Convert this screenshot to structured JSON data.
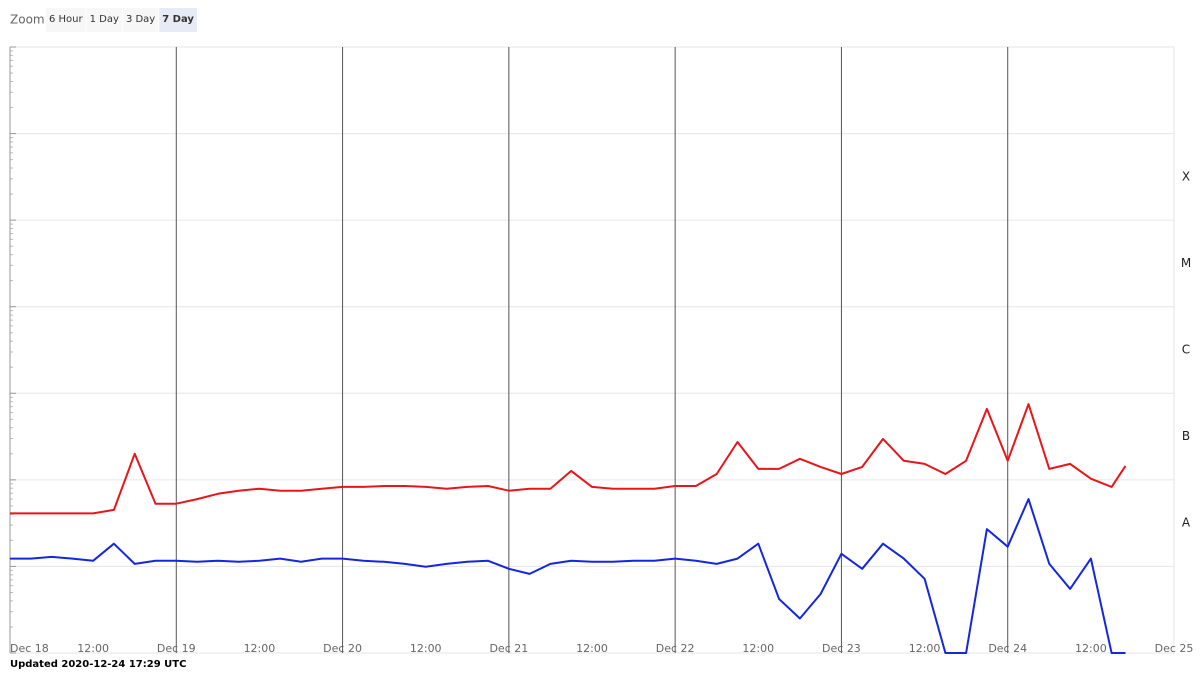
{
  "zoom": {
    "label": "Zoom",
    "buttons": [
      "6 Hour",
      "1 Day",
      "3 Day",
      "7 Day"
    ],
    "active": 3
  },
  "footer": "Updated 2020-12-24 17:29 UTC",
  "chart_data": {
    "type": "line",
    "log_y": true,
    "grid": true,
    "x": [
      "2020-12-18 00:00",
      "2020-12-18 03:00",
      "2020-12-18 06:00",
      "2020-12-18 09:00",
      "2020-12-18 12:00",
      "2020-12-18 15:00",
      "2020-12-18 18:00",
      "2020-12-18 21:00",
      "2020-12-19 00:00",
      "2020-12-19 03:00",
      "2020-12-19 06:00",
      "2020-12-19 09:00",
      "2020-12-19 12:00",
      "2020-12-19 15:00",
      "2020-12-19 18:00",
      "2020-12-19 21:00",
      "2020-12-20 00:00",
      "2020-12-20 03:00",
      "2020-12-20 06:00",
      "2020-12-20 09:00",
      "2020-12-20 12:00",
      "2020-12-20 15:00",
      "2020-12-20 18:00",
      "2020-12-20 21:00",
      "2020-12-21 00:00",
      "2020-12-21 03:00",
      "2020-12-21 06:00",
      "2020-12-21 09:00",
      "2020-12-21 12:00",
      "2020-12-21 15:00",
      "2020-12-21 18:00",
      "2020-12-21 21:00",
      "2020-12-22 00:00",
      "2020-12-22 03:00",
      "2020-12-22 06:00",
      "2020-12-22 09:00",
      "2020-12-22 12:00",
      "2020-12-22 15:00",
      "2020-12-22 18:00",
      "2020-12-22 21:00",
      "2020-12-23 00:00",
      "2020-12-23 03:00",
      "2020-12-23 06:00",
      "2020-12-23 09:00",
      "2020-12-23 12:00",
      "2020-12-23 15:00",
      "2020-12-23 18:00",
      "2020-12-23 21:00",
      "2020-12-24 00:00",
      "2020-12-24 03:00",
      "2020-12-24 06:00",
      "2020-12-24 09:00",
      "2020-12-24 12:00",
      "2020-12-24 15:00",
      "2020-12-24 17:00"
    ],
    "series": [
      {
        "color": "#e8151b",
        "values": [
          4.1e-08,
          4.1e-08,
          4.1e-08,
          4.1e-08,
          4.1e-08,
          4.5e-08,
          2e-07,
          5.3e-08,
          5.3e-08,
          6e-08,
          6.9e-08,
          7.5e-08,
          7.9e-08,
          7.5e-08,
          7.5e-08,
          7.9e-08,
          8.3e-08,
          8.3e-08,
          8.5e-08,
          8.5e-08,
          8.3e-08,
          7.9e-08,
          8.3e-08,
          8.5e-08,
          7.5e-08,
          7.9e-08,
          7.9e-08,
          1.27e-07,
          8.3e-08,
          7.9e-08,
          7.9e-08,
          7.9e-08,
          8.5e-08,
          8.5e-08,
          1.17e-07,
          2.74e-07,
          1.34e-07,
          1.34e-07,
          1.75e-07,
          1.41e-07,
          1.17e-07,
          1.41e-07,
          2.97e-07,
          1.66e-07,
          1.53e-07,
          1.17e-07,
          1.66e-07,
          6.6e-07,
          1.66e-07,
          7.5e-07,
          1.34e-07,
          1.53e-07,
          1.03e-07,
          8.3e-08,
          1.45e-07
        ]
      },
      {
        "color": "#1427e0",
        "values": [
          1.23e-08,
          1.23e-08,
          1.29e-08,
          1.23e-08,
          1.16e-08,
          1.83e-08,
          1.07e-08,
          1.16e-08,
          1.16e-08,
          1.13e-08,
          1.16e-08,
          1.13e-08,
          1.16e-08,
          1.23e-08,
          1.13e-08,
          1.23e-08,
          1.23e-08,
          1.16e-08,
          1.13e-08,
          1.07e-08,
          9.9e-09,
          1.07e-08,
          1.13e-08,
          1.16e-08,
          9.4e-09,
          8.2e-09,
          1.07e-08,
          1.16e-08,
          1.13e-08,
          1.13e-08,
          1.16e-08,
          1.16e-08,
          1.23e-08,
          1.16e-08,
          1.07e-08,
          1.23e-08,
          1.83e-08,
          4.2e-09,
          2.5e-09,
          4.8e-09,
          1.4e-08,
          9.4e-09,
          1.83e-08,
          1.23e-08,
          7.2e-09,
          1e-09,
          1e-09,
          2.7e-08,
          1.69e-08,
          6e-08,
          1.07e-08,
          5.5e-09,
          1.23e-08,
          1e-09,
          1e-09
        ]
      }
    ],
    "xlim": [
      "2020-12-18 00:00",
      "2020-12-25 00:00"
    ],
    "xticks": [
      {
        "value": "2020-12-18 00:00",
        "label": "Dec 18"
      },
      {
        "value": "2020-12-18 12:00",
        "label": "12:00"
      },
      {
        "value": "2020-12-19 00:00",
        "label": "Dec 19"
      },
      {
        "value": "2020-12-19 12:00",
        "label": "12:00"
      },
      {
        "value": "2020-12-20 00:00",
        "label": "Dec 20"
      },
      {
        "value": "2020-12-20 12:00",
        "label": "12:00"
      },
      {
        "value": "2020-12-21 00:00",
        "label": "Dec 21"
      },
      {
        "value": "2020-12-21 12:00",
        "label": "12:00"
      },
      {
        "value": "2020-12-22 00:00",
        "label": "Dec 22"
      },
      {
        "value": "2020-12-22 12:00",
        "label": "12:00"
      },
      {
        "value": "2020-12-23 00:00",
        "label": "Dec 23"
      },
      {
        "value": "2020-12-23 12:00",
        "label": "12:00"
      },
      {
        "value": "2020-12-24 00:00",
        "label": "Dec 24"
      },
      {
        "value": "2020-12-24 12:00",
        "label": "12:00"
      },
      {
        "value": "2020-12-25 00:00",
        "label": "Dec 25"
      }
    ],
    "ylim": [
      1e-09,
      0.01
    ],
    "yticks": [
      1e-09,
      1e-08,
      1e-07,
      1e-06,
      1e-05,
      0.0001,
      0.001,
      0.01
    ],
    "flare_classes": [
      {
        "value": 1e-08,
        "label": "A"
      },
      {
        "value": 1e-07,
        "label": "B"
      },
      {
        "value": 1e-06,
        "label": "C"
      },
      {
        "value": 1e-05,
        "label": "M"
      },
      {
        "value": 0.0001,
        "label": "X"
      }
    ]
  }
}
